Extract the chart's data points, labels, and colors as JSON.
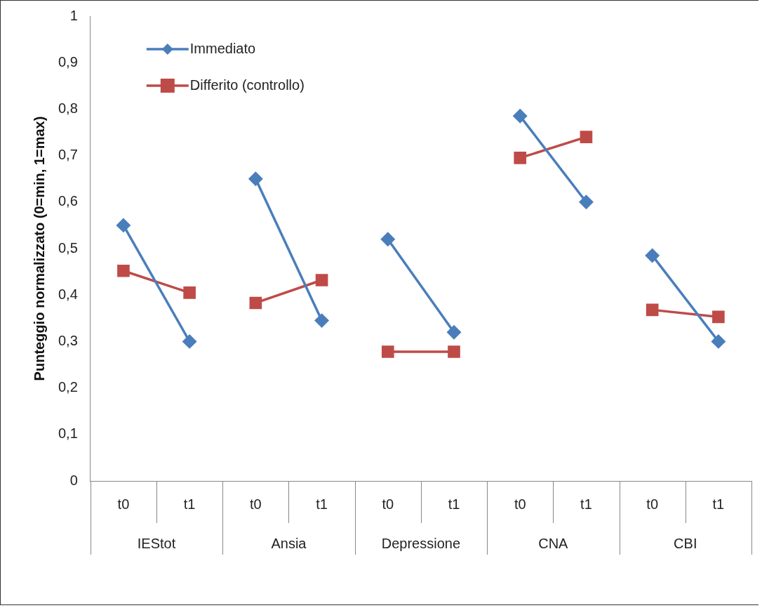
{
  "chart_data": {
    "type": "line",
    "ylabel": "Punteggio normalizzato (0=min, 1=max)",
    "categories": [
      "t0",
      "t1",
      "t0",
      "t1",
      "t0",
      "t1",
      "t0",
      "t1",
      "t0",
      "t1"
    ],
    "annotations": [
      "IEStot",
      "Ansia",
      "Depressione",
      "CNA",
      "CBI"
    ],
    "series": [
      {
        "name": "Immediato",
        "color": "#4a7ebb",
        "marker": "diamond",
        "values": [
          0.55,
          0.3,
          0.65,
          0.345,
          0.52,
          0.32,
          0.785,
          0.6,
          0.485,
          0.3
        ]
      },
      {
        "name": "Differito (controllo)",
        "color": "#be4b48",
        "marker": "square",
        "values": [
          0.452,
          0.405,
          0.383,
          0.432,
          0.278,
          0.278,
          0.695,
          0.74,
          0.368,
          0.353
        ]
      }
    ],
    "ylim": [
      0,
      1
    ],
    "yticks": [
      0,
      {
        "value": 0.1,
        "label": "0,1"
      },
      {
        "value": 0.2,
        "label": "0,2"
      },
      {
        "value": 0.3,
        "label": "0,3"
      },
      {
        "value": 0.4,
        "label": "0,4"
      },
      {
        "value": 0.5,
        "label": "0,5"
      },
      {
        "value": 0.6,
        "label": "0,6"
      },
      {
        "value": 0.7,
        "label": "0,7"
      },
      {
        "value": 0.8,
        "label": "0,8"
      },
      {
        "value": 0.9,
        "label": "0,9"
      },
      1
    ],
    "grid": false,
    "legend": "top left",
    "line_style": "solid"
  }
}
